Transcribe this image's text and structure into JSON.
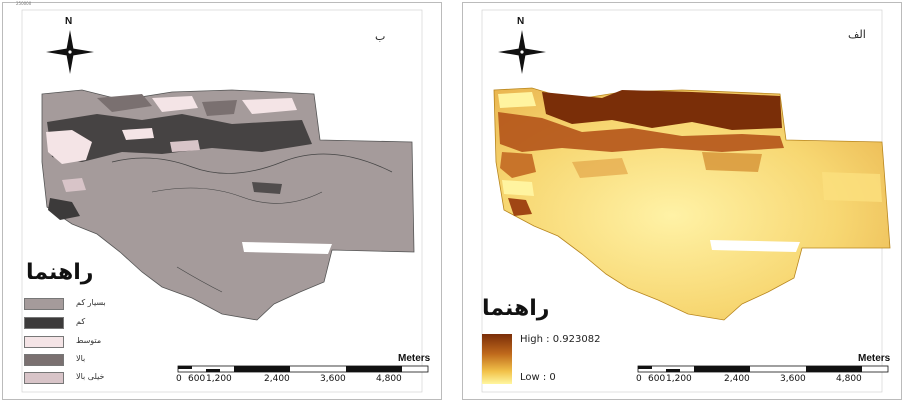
{
  "panels": {
    "left": {
      "label": "ب",
      "north": "N",
      "legend_title": "راهنما",
      "legend_items": [
        {
          "label": "بسیار کم",
          "color": "#a59b9b"
        },
        {
          "label": "کم",
          "color": "#3c3a3a"
        },
        {
          "label": "متوسط",
          "color": "#f4e4e6"
        },
        {
          "label": "بالا",
          "color": "#7a7070"
        },
        {
          "label": "خیلی بالا",
          "color": "#d8c4c8"
        }
      ],
      "scale": {
        "unit": "Meters",
        "ticks": [
          "0",
          "600",
          "1,200",
          "2,400",
          "3,600",
          "4,800"
        ]
      }
    },
    "right": {
      "label": "الف",
      "north": "N",
      "legend_title": "راهنما",
      "gradient": {
        "high_label": "High : 0.923082",
        "low_label": "Low : 0",
        "high_color": "#7a2e08",
        "low_color": "#fff6a0"
      },
      "scale": {
        "unit": "Meters",
        "ticks": [
          "0",
          "600",
          "1,200",
          "2,400",
          "3,600",
          "4,800"
        ]
      }
    }
  }
}
